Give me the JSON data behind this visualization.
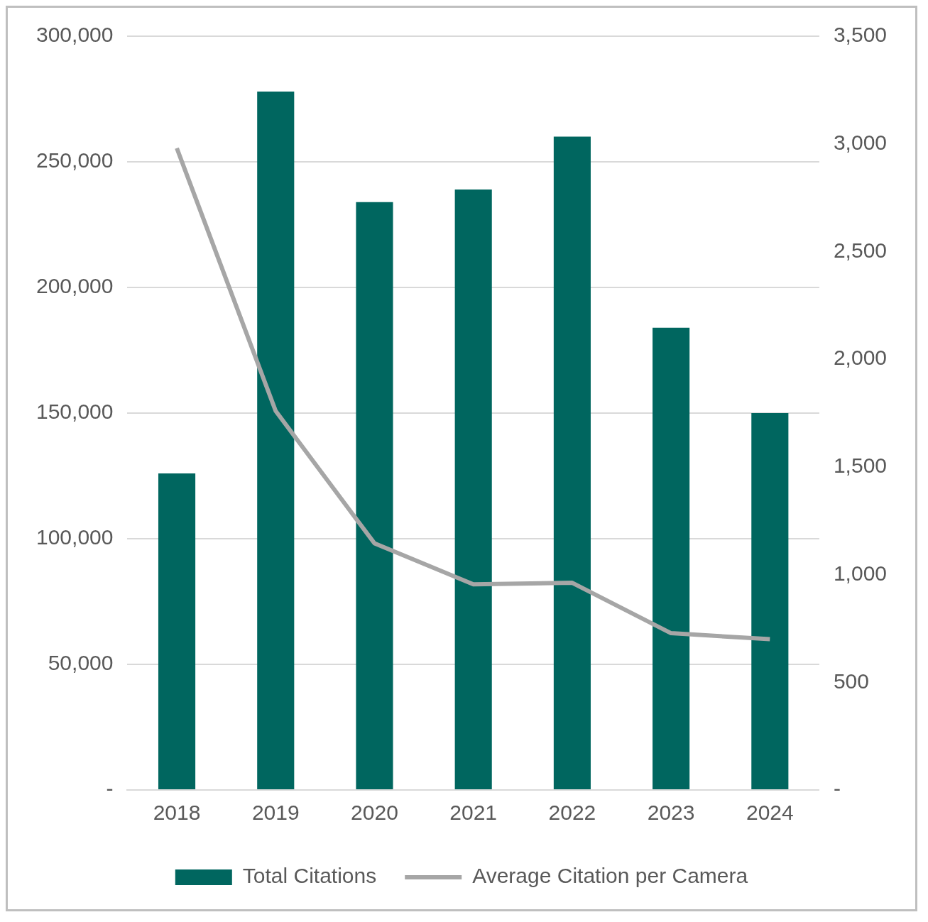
{
  "chart_data": {
    "type": "bar",
    "categories": [
      "2018",
      "2019",
      "2020",
      "2021",
      "2022",
      "2023",
      "2024"
    ],
    "series": [
      {
        "name": "Total Citations",
        "color": "#00665f",
        "values": [
          126000,
          278000,
          234000,
          239000,
          260000,
          184000,
          150000
        ]
      },
      {
        "name": "Average Citation per Camera",
        "type": "line",
        "axis": "y2",
        "color": "#a6a6a6",
        "values": [
          2980,
          1760,
          1145,
          955,
          962,
          728,
          700
        ]
      }
    ],
    "ylim": [
      0,
      300000
    ],
    "yticks": [
      {
        "value": 0,
        "label": "-"
      },
      {
        "value": 50000,
        "label": "50,000"
      },
      {
        "value": 100000,
        "label": "100,000"
      },
      {
        "value": 150000,
        "label": "150,000"
      },
      {
        "value": 200000,
        "label": "200,000"
      },
      {
        "value": 250000,
        "label": "250,000"
      },
      {
        "value": 300000,
        "label": "300,000"
      }
    ],
    "y2lim": [
      0,
      3500
    ],
    "y2ticks": [
      {
        "value": 0,
        "label": "-"
      },
      500,
      {
        "value": 1000,
        "label": "1,000"
      },
      {
        "value": 1500,
        "label": "1,500"
      },
      {
        "value": 2000,
        "label": "2,000"
      },
      {
        "value": 2500,
        "label": "2,500"
      },
      {
        "value": 3000,
        "label": "3,000"
      },
      {
        "value": 3500,
        "label": "3,500"
      }
    ],
    "grid": "y",
    "legend": "bottom",
    "marker": "none"
  }
}
